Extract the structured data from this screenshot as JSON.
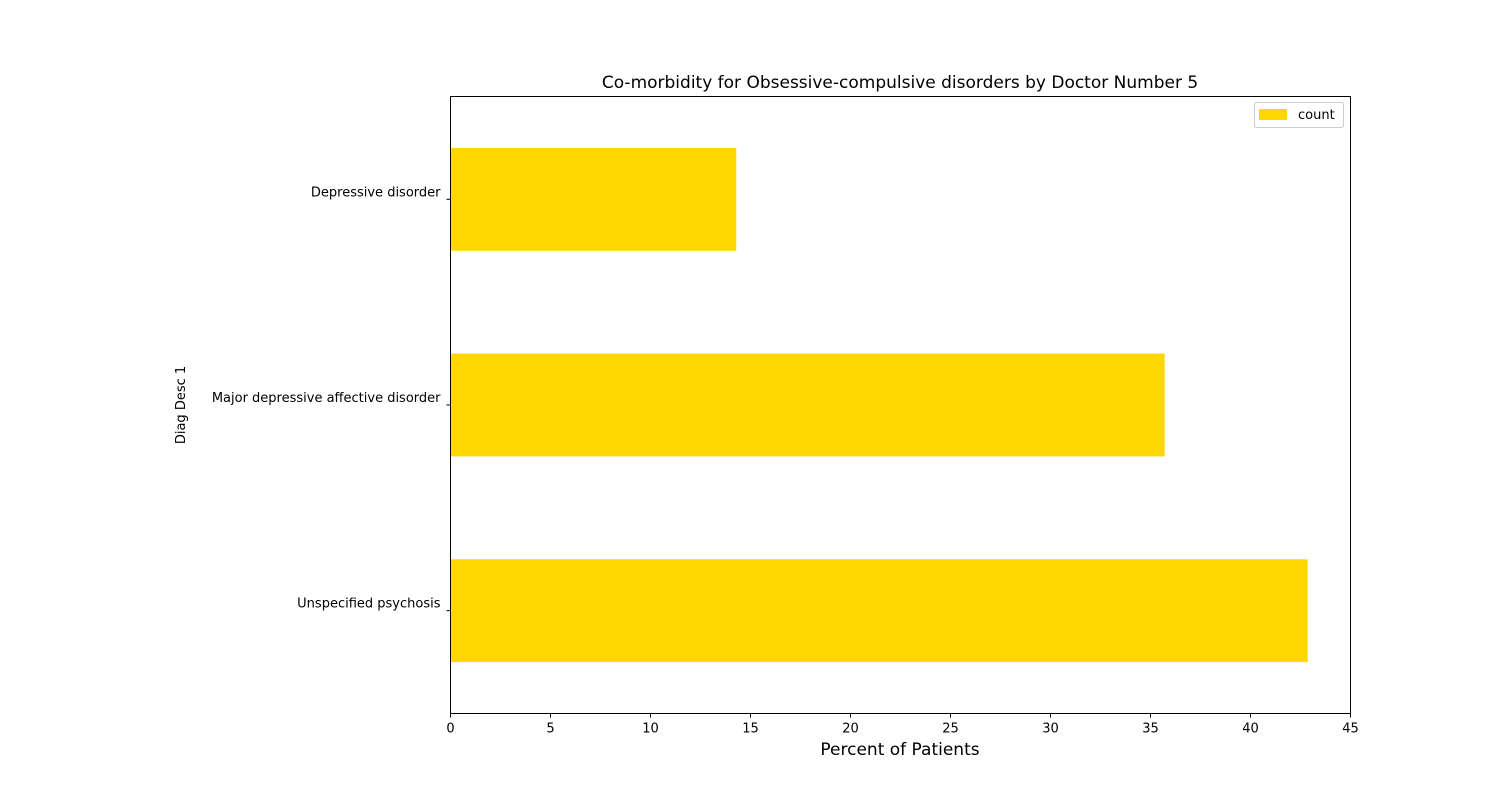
{
  "chart_data": {
    "type": "bar",
    "orientation": "horizontal",
    "title": "Co-morbidity for Obsessive-compulsive disorders by Doctor Number 5",
    "xlabel": "Percent of Patients",
    "ylabel": "Diag Desc 1",
    "categories": [
      "Unspecified psychosis",
      "Major depressive affective disorder",
      "Depressive disorder"
    ],
    "series": [
      {
        "name": "count",
        "values": [
          42.86,
          35.71,
          14.29
        ],
        "color": "#ffd700"
      }
    ],
    "xlim": [
      0,
      45
    ],
    "xticks": [
      "0",
      "5",
      "10",
      "15",
      "20",
      "25",
      "30",
      "35",
      "40",
      "45"
    ],
    "grid": false,
    "legend_position": "top-right"
  }
}
